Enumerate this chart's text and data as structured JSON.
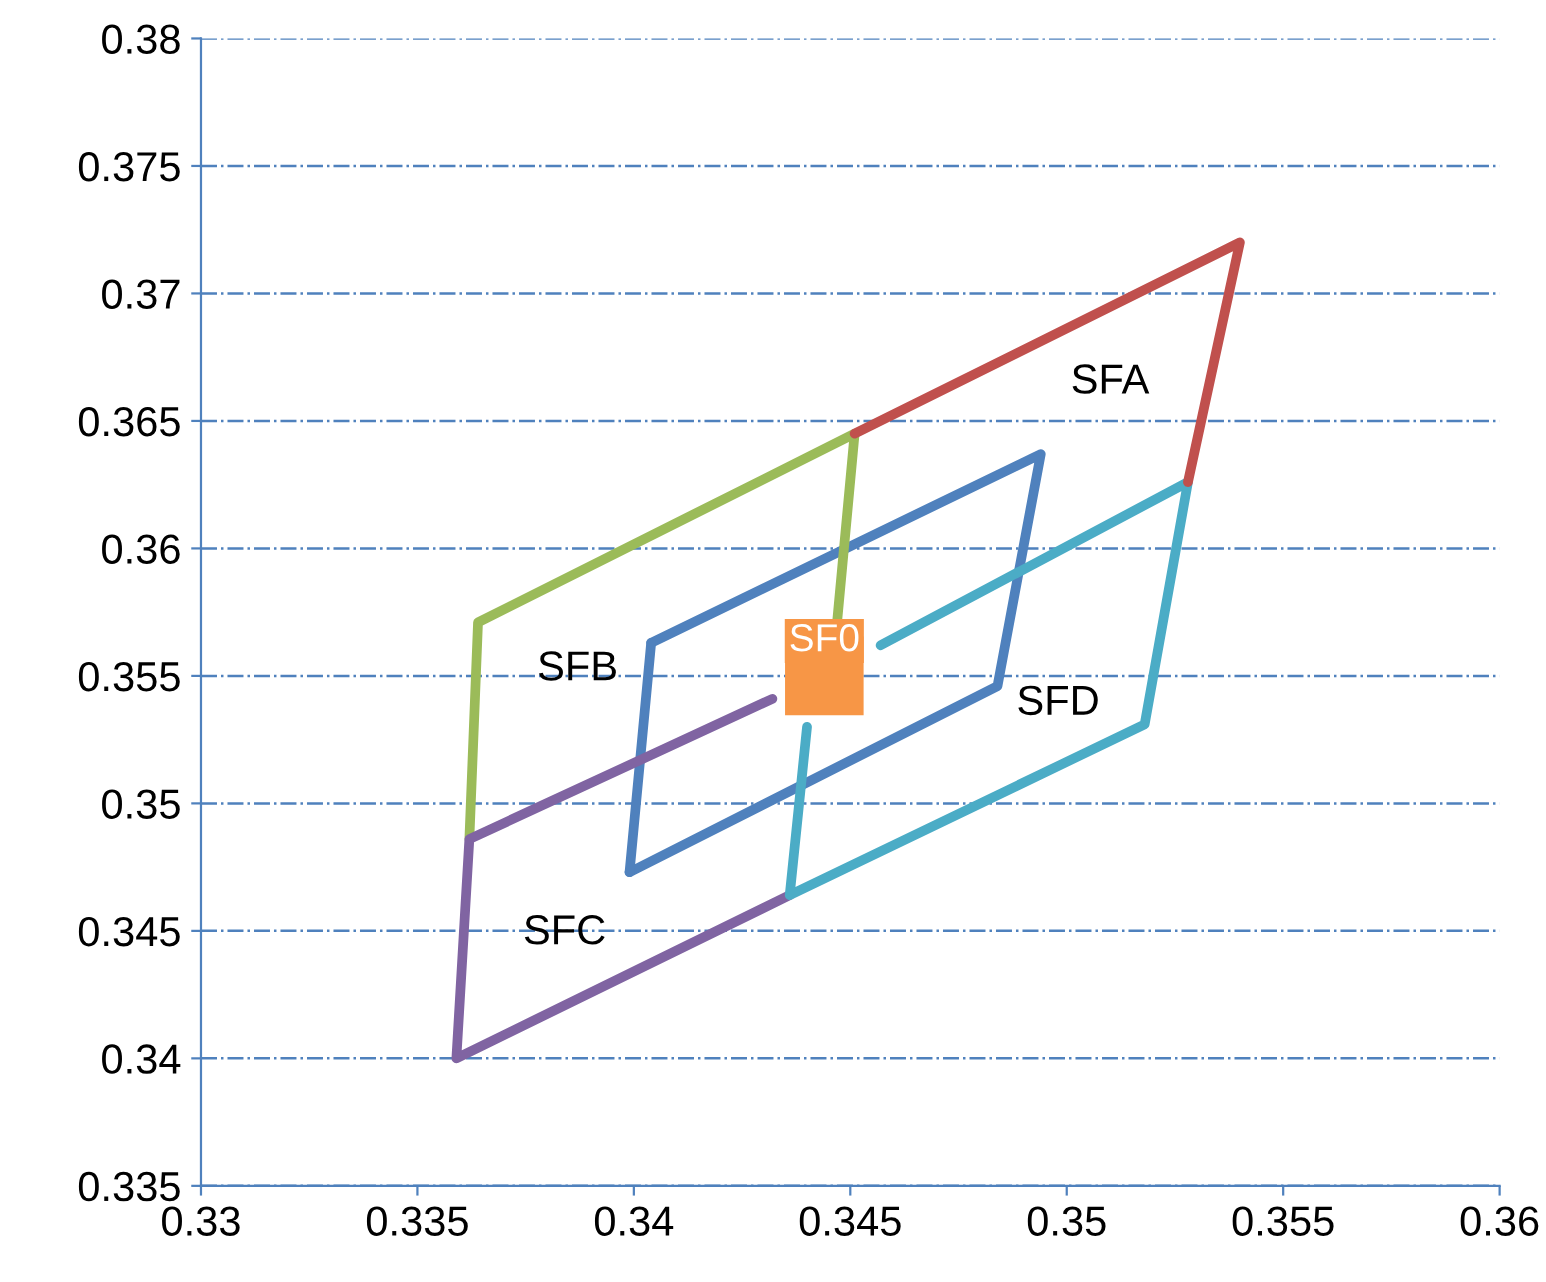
{
  "chart_data": {
    "type": "line",
    "xlim": [
      0.33,
      0.36
    ],
    "ylim": [
      0.335,
      0.38
    ],
    "xticks": [
      0.33,
      0.335,
      0.34,
      0.345,
      0.35,
      0.355,
      0.36
    ],
    "yticks": [
      0.335,
      0.34,
      0.345,
      0.35,
      0.355,
      0.36,
      0.365,
      0.37,
      0.375,
      0.38
    ],
    "grid": "y",
    "marker": "none",
    "line_style": "solid",
    "series": [
      {
        "color": "#4f81bd",
        "x": [
          0.3404,
          0.3494,
          0.3484,
          0.3399
        ],
        "values": [
          0.3563,
          0.3637,
          0.3546,
          0.3473
        ]
      },
      {
        "color": "#4f81bd",
        "x": [
          0.3399,
          0.3404
        ],
        "values": [
          0.3473,
          0.3563
        ]
      },
      {
        "color": "#9bbb59",
        "x": [
          0.3447,
          0.3451,
          0.3364,
          0.3362
        ],
        "values": [
          0.3572,
          0.3645,
          0.3571,
          0.3486
        ]
      },
      {
        "color": "#8064a2",
        "x": [
          0.3432,
          0.3362,
          0.3359,
          0.3436
        ],
        "values": [
          0.3541,
          0.3486,
          0.34,
          0.3464
        ]
      },
      {
        "color": "#4bacc6",
        "x": [
          0.3457,
          0.3528,
          0.3518,
          0.3436,
          0.344
        ],
        "values": [
          0.3562,
          0.3626,
          0.3531,
          0.3464,
          0.353
        ]
      },
      {
        "color": "#c0504d",
        "x": [
          0.3451,
          0.354,
          0.3528
        ],
        "values": [
          0.3645,
          0.372,
          0.3626
        ]
      },
      {
        "type": "scatter",
        "name": "SF0",
        "color": "#f79646",
        "marker": "square",
        "x": [
          0.3444
        ],
        "values": [
          0.355
        ]
      }
    ],
    "annotations": [
      "SFA",
      "SFB",
      "SFC",
      "SFD"
    ]
  }
}
